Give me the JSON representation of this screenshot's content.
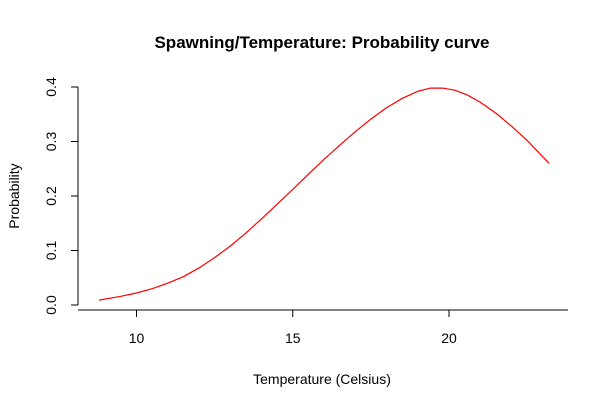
{
  "chart_data": {
    "type": "line",
    "title": "Spawning/Temperature: Probability curve",
    "xlabel": "Temperature (Celsius)",
    "ylabel": "Probability",
    "xlim": [
      8.8,
      23.2
    ],
    "ylim": [
      0.0,
      0.4
    ],
    "x_ticks": [
      10,
      15,
      20
    ],
    "y_ticks": [
      0.0,
      0.1,
      0.2,
      0.3,
      0.4
    ],
    "x_tick_labels": [
      "10",
      "15",
      "20"
    ],
    "y_tick_labels": [
      "0.0",
      "0.1",
      "0.2",
      "0.3",
      "0.4"
    ],
    "grid": false,
    "series": [
      {
        "color": "#ff0000",
        "x": [
          8.8,
          9.5,
          10,
          10.5,
          11,
          11.5,
          12,
          12.5,
          13,
          13.5,
          14,
          14.5,
          15,
          15.5,
          16,
          16.5,
          17,
          17.5,
          18,
          18.5,
          19,
          19.4,
          19.8,
          20.2,
          20.6,
          21,
          21.5,
          22,
          22.5,
          23.2
        ],
        "y": [
          0.009,
          0.016,
          0.022,
          0.03,
          0.04,
          0.052,
          0.068,
          0.087,
          0.108,
          0.132,
          0.158,
          0.185,
          0.212,
          0.24,
          0.267,
          0.293,
          0.318,
          0.341,
          0.362,
          0.379,
          0.392,
          0.398,
          0.398,
          0.394,
          0.385,
          0.372,
          0.352,
          0.328,
          0.302,
          0.26
        ]
      }
    ]
  }
}
